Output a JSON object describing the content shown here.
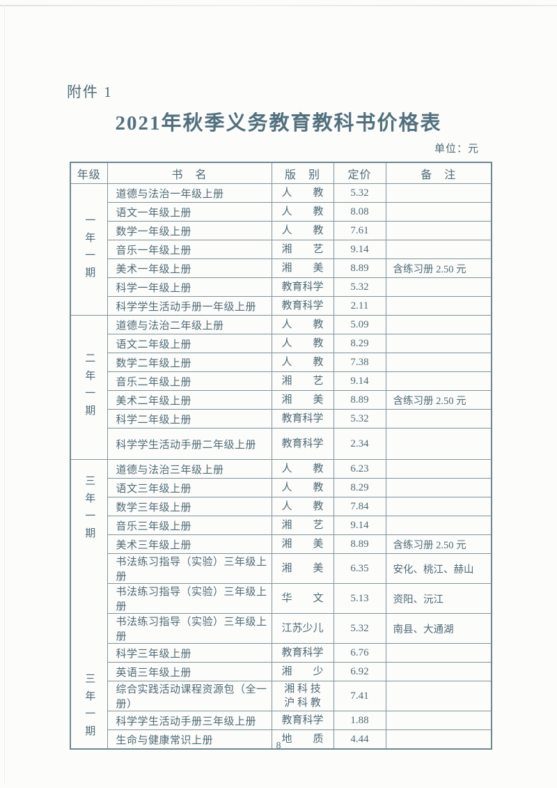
{
  "colors": {
    "ink": "#4e6a76",
    "title_ink": "#51707e",
    "table_border": "#7e939c",
    "table_outer_border": "#6d8690",
    "paper_background": "#fcfcfb"
  },
  "page": {
    "attachment_label": "附件 1",
    "title": "2021年秋季义务教育教科书价格表",
    "unit_note": "单位：元",
    "page_number": "8"
  },
  "table": {
    "headers": {
      "grade": "年级",
      "book": "书　名",
      "edition": "版　别",
      "price": "定价",
      "remark": "备　注"
    },
    "sections": [
      {
        "grade_labels": [
          "一年一期"
        ],
        "rows": [
          {
            "book": "道德与法治一年级上册",
            "edition": "人　　教",
            "price": "5.32",
            "remark": ""
          },
          {
            "book": "语文一年级上册",
            "edition": "人　　教",
            "price": "8.08",
            "remark": ""
          },
          {
            "book": "数学一年级上册",
            "edition": "人　　教",
            "price": "7.61",
            "remark": ""
          },
          {
            "book": "音乐一年级上册",
            "edition": "湘　　艺",
            "price": "9.14",
            "remark": ""
          },
          {
            "book": "美术一年级上册",
            "edition": "湘　　美",
            "price": "8.89",
            "remark": "含练习册 2.50 元"
          },
          {
            "book": "科学一年级上册",
            "edition": "教育科学",
            "price": "5.32",
            "remark": ""
          },
          {
            "book": "科学学生活动手册一年级上册",
            "edition": "教育科学",
            "price": "2.11",
            "remark": ""
          }
        ]
      },
      {
        "grade_labels": [
          "二年一期"
        ],
        "rows": [
          {
            "book": "道德与法治二年级上册",
            "edition": "人　　教",
            "price": "5.09",
            "remark": ""
          },
          {
            "book": "语文二年级上册",
            "edition": "人　　教",
            "price": "8.29",
            "remark": ""
          },
          {
            "book": "数学二年级上册",
            "edition": "人　　教",
            "price": "7.38",
            "remark": ""
          },
          {
            "book": "音乐二年级上册",
            "edition": "湘　　艺",
            "price": "9.14",
            "remark": ""
          },
          {
            "book": "美术二年级上册",
            "edition": "湘　　美",
            "price": "8.89",
            "remark": "含练习册 2.50 元"
          },
          {
            "book": "科学二年级上册",
            "edition": "教育科学",
            "price": "5.32",
            "remark": ""
          },
          {
            "book": "科学学生活动手册二年级上册",
            "edition": "教育科学",
            "price": "2.34",
            "remark": ""
          }
        ]
      },
      {
        "grade_labels": [
          "三年一期",
          "三年一期"
        ],
        "rows": [
          {
            "book": "道德与法治三年级上册",
            "edition": "人　　教",
            "price": "6.23",
            "remark": ""
          },
          {
            "book": "语文三年级上册",
            "edition": "人　　教",
            "price": "8.29",
            "remark": ""
          },
          {
            "book": "数学三年级上册",
            "edition": "人　　教",
            "price": "7.84",
            "remark": ""
          },
          {
            "book": "音乐三年级上册",
            "edition": "湘　　艺",
            "price": "9.14",
            "remark": ""
          },
          {
            "book": "美术三年级上册",
            "edition": "湘　　美",
            "price": "8.89",
            "remark": "含练习册 2.50 元"
          },
          {
            "book": "书法练习指导（实验）三年级上册",
            "edition": "湘　　美",
            "price": "6.35",
            "remark": "安化、桃江、赫山"
          },
          {
            "book": "书法练习指导（实验）三年级上册",
            "edition": "华　　文",
            "price": "5.13",
            "remark": "资阳、沅江"
          },
          {
            "book": "书法练习指导（实验）三年级上册",
            "edition": "江苏少儿",
            "price": "5.32",
            "remark": "南县、大通湖"
          },
          {
            "book": "科学三年级上册",
            "edition": "教育科学",
            "price": "6.76",
            "remark": ""
          },
          {
            "book": "英语三年级上册",
            "edition": "湘　　少",
            "price": "6.92",
            "remark": ""
          },
          {
            "book": "综合实践活动课程资源包（全一册）",
            "edition": "湘 科 技\n沪 科 教",
            "price": "7.41",
            "remark": ""
          },
          {
            "book": "科学学生活动手册三年级上册",
            "edition": "教育科学",
            "price": "1.88",
            "remark": ""
          },
          {
            "book": "生命与健康常识上册",
            "edition": "地　　质",
            "price": "4.44",
            "remark": ""
          }
        ]
      }
    ]
  }
}
